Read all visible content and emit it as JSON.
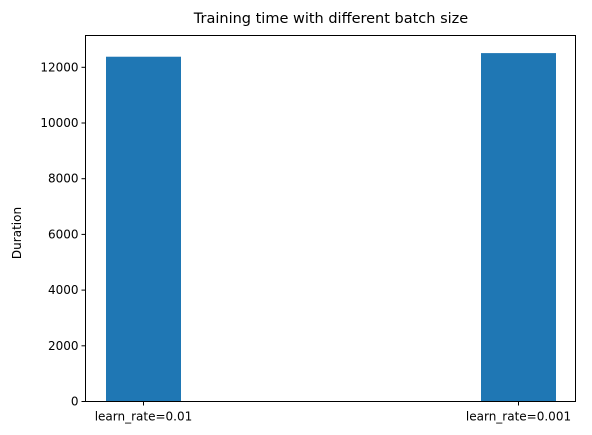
{
  "chart_data": {
    "type": "bar",
    "title": "Training time with different batch size",
    "xlabel": "",
    "ylabel": "Duration",
    "categories": [
      "learn_rate=0.01",
      "learn_rate=0.001"
    ],
    "values": [
      12380,
      12510
    ],
    "ylim": [
      0,
      13142
    ],
    "yticks": [
      0,
      2000,
      4000,
      6000,
      8000,
      10000,
      12000
    ],
    "bar_color": "#1f77b4",
    "grid": false,
    "legend": "none"
  }
}
